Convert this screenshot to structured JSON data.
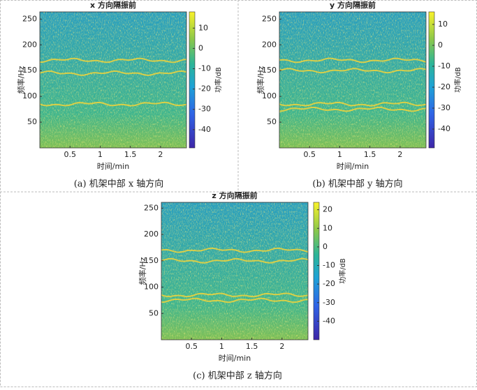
{
  "chart_data": [
    {
      "type": "spectrogram",
      "title": "x 方向隔振前",
      "xlabel": "时间/min",
      "ylabel": "频率/Hz",
      "colorbar_label": "功率/dB",
      "caption": "(a) 机架中部 x 轴方向",
      "xlim": [
        0,
        2.43
      ],
      "xticks": [
        0.5,
        1,
        1.5,
        2
      ],
      "ylim": [
        0,
        264
      ],
      "yticks": [
        50,
        100,
        150,
        200,
        250
      ],
      "clim": [
        -49,
        18
      ],
      "cticks": [
        -40,
        -30,
        -20,
        -10,
        0,
        10
      ],
      "band_frequencies": [
        85,
        170,
        145
      ],
      "band_color": "#f2d43a"
    },
    {
      "type": "spectrogram",
      "title": "y 方向隔振前",
      "xlabel": "时间/min",
      "ylabel": "频率/Hz",
      "colorbar_label": "功率/dB",
      "caption": "(b) 机架中部 y 轴方向",
      "xlim": [
        0,
        2.43
      ],
      "xticks": [
        0.5,
        1,
        1.5,
        2
      ],
      "ylim": [
        0,
        264
      ],
      "yticks": [
        50,
        100,
        150,
        200,
        250
      ],
      "clim": [
        -49,
        16
      ],
      "cticks": [
        -40,
        -30,
        -20,
        -10,
        0,
        10
      ],
      "band_frequencies": [
        85,
        75,
        150,
        170
      ],
      "band_color": "#f2d43a"
    },
    {
      "type": "spectrogram",
      "title": "z 方向隔振前",
      "xlabel": "时间/min",
      "ylabel": "频率/Hz",
      "colorbar_label": "功率/dB",
      "caption": "(c)  机架中部 z 轴方向",
      "xlim": [
        0,
        2.43
      ],
      "xticks": [
        0.5,
        1,
        1.5,
        2
      ],
      "ylim": [
        0,
        261
      ],
      "yticks": [
        50,
        100,
        150,
        200,
        250
      ],
      "clim": [
        -50,
        24
      ],
      "cticks": [
        -40,
        -30,
        -20,
        -10,
        0,
        10,
        20
      ],
      "band_frequencies": [
        85,
        75,
        150,
        170
      ],
      "band_color": "#f2d43a"
    }
  ]
}
